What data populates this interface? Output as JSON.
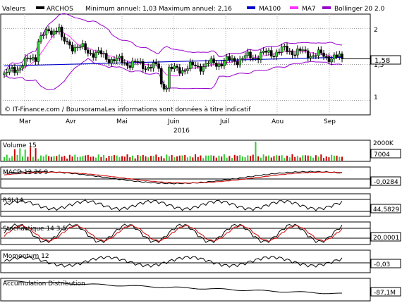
{
  "header": {
    "valeurs_label": "Valeurs",
    "ticker": "ARCHOS",
    "min_max_text": "Minimum annuel: 1,03 Maximum annuel: 2,16",
    "legend": [
      {
        "label": "MA100",
        "color": "#0000cc"
      },
      {
        "label": "MA7",
        "color": "#ff33ff"
      },
      {
        "label": "Bollinger 20 2.0",
        "color": "#9900cc"
      }
    ]
  },
  "watermark": "© IT-Finance.com / BoursoramaLes informations sont données à titre indicatif",
  "year_label": "2016",
  "months": [
    "Mar",
    "Avr",
    "Mai",
    "Juin",
    "Juil",
    "Aou",
    "Sep"
  ],
  "price_axis": {
    "ticks": [
      "2",
      "1,5",
      "1"
    ],
    "last_value": "1,58"
  },
  "panels": [
    {
      "title": "Volume 15",
      "top_tick": "2000K",
      "value": "7004"
    },
    {
      "title": "MACD 12 26 9",
      "value": "-0,0284"
    },
    {
      "title": "RSI 14",
      "value": "44,5829"
    },
    {
      "title": "Stochastique 14 3 5",
      "value": "20,0001"
    },
    {
      "title": "Momentum 12",
      "value": "-0,03"
    },
    {
      "title": "Accumulation Distribution",
      "value": "-87,1M"
    }
  ],
  "chart_data": [
    {
      "type": "candlestick",
      "title": "ARCHOS",
      "x_labels": [
        "Mar",
        "Avr",
        "Mai",
        "Juin",
        "Juil",
        "Aou",
        "Sep"
      ],
      "ylim": [
        0.8,
        2.2
      ],
      "yticks": [
        2,
        1.5,
        1
      ],
      "approx_close_by_month": {
        "Mar": 1.7,
        "Avr": 1.82,
        "Mai": 1.55,
        "Juin": 1.42,
        "Juil": 1.55,
        "Aou": 1.7,
        "Sep": 1.58
      },
      "last_close": 1.58,
      "series": [
        {
          "name": "MA100",
          "start": 1.48,
          "end": 1.6
        },
        {
          "name": "MA7"
        },
        {
          "name": "Bollinger 20 2.0"
        }
      ]
    },
    {
      "type": "bar",
      "title": "Volume 15",
      "last_value": 7004,
      "ylim_top": 2000000
    },
    {
      "type": "line",
      "title": "MACD 12 26 9",
      "last_value": -0.0284
    },
    {
      "type": "line",
      "title": "RSI 14",
      "last_value": 44.5829
    },
    {
      "type": "line",
      "title": "Stochastique 14 3 5",
      "last_value": 20.0001
    },
    {
      "type": "line",
      "title": "Momentum 12",
      "last_value": -0.03
    },
    {
      "type": "line",
      "title": "Accumulation Distribution",
      "last_value": -87100000
    }
  ]
}
